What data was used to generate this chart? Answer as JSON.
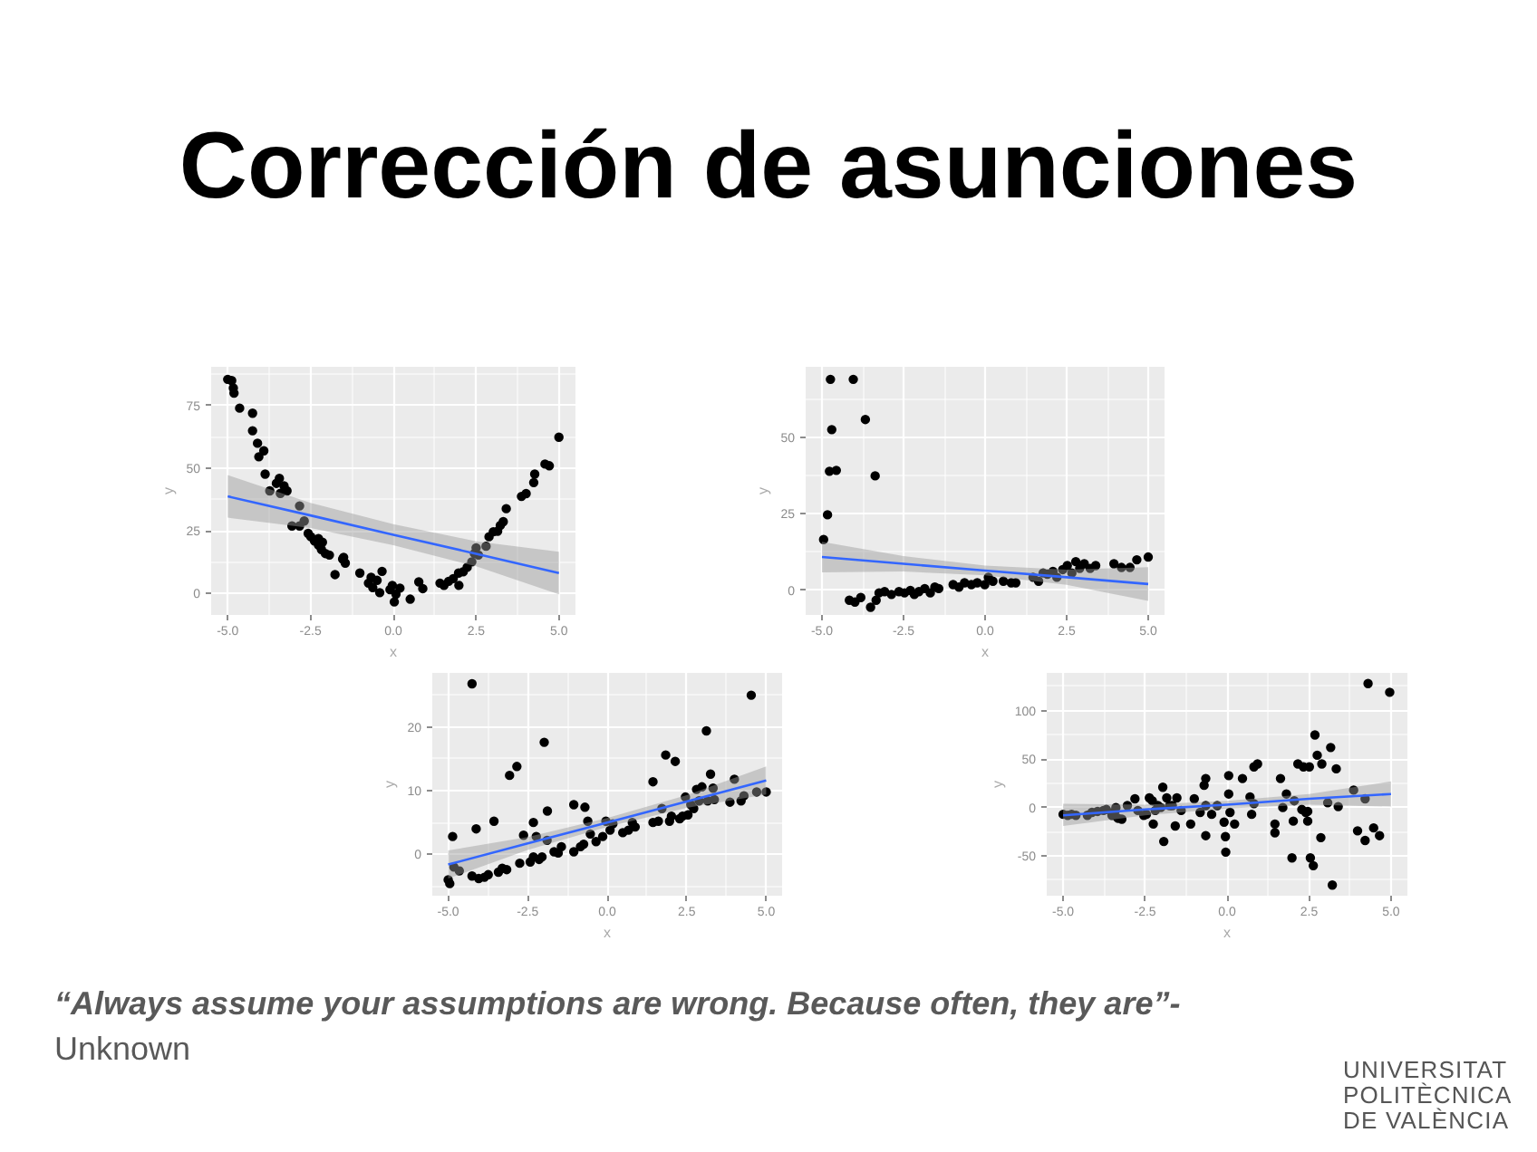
{
  "chart_data": [
    {
      "type": "scatter",
      "title": "Corrección de asunciones",
      "annotations": [
        "“Always assume your assumptions are wrong. Because often, they are”-",
        "Unknown",
        "UNIVERSITAT POLITÈCNICA DE VALÈNCIA"
      ],
      "xlabel": "x",
      "ylabel": "y",
      "xlim": [
        -5.5,
        5.5
      ],
      "ylim": [
        -8.5,
        90.5
      ],
      "xticks": [
        {
          "value": -5,
          "label": "-5.0"
        },
        {
          "value": -2.5,
          "label": "-2.5"
        },
        {
          "value": 0,
          "label": "0.0"
        },
        {
          "value": 2.5,
          "label": "2.5"
        },
        {
          "value": 5,
          "label": "5.0"
        }
      ],
      "yticks": [
        0,
        25,
        50,
        75
      ],
      "grid": true,
      "series": [
        {
          "type": "scatter",
          "marker": "circle",
          "color": "#000000",
          "x": [
            -5.0,
            -4.88,
            -4.83,
            -4.81,
            -4.64,
            -4.25,
            -4.25,
            -4.1,
            -4.06,
            -3.91,
            -3.87,
            -3.73,
            -3.53,
            -3.44,
            -3.41,
            -3.3,
            -3.21,
            -3.06,
            -2.83,
            -2.83,
            -2.69,
            -2.57,
            -2.49,
            -2.38,
            -2.26,
            -2.26,
            -2.17,
            -2.14,
            -2.05,
            -1.93,
            -1.76,
            -1.53,
            -1.5,
            -1.45,
            -1.01,
            -0.75,
            -0.67,
            -0.62,
            -0.49,
            -0.41,
            -0.34,
            -0.1,
            -0.03,
            0.03,
            0.08,
            0.2,
            0.51,
            0.77,
            0.89,
            1.41,
            1.53,
            1.67,
            1.81,
            1.97,
            1.98,
            2.11,
            2.23,
            2.37,
            2.45,
            2.5,
            2.57,
            2.8,
            2.89,
            3.02,
            3.15,
            3.23,
            3.32,
            3.41,
            3.87,
            4.01,
            4.24,
            4.27,
            4.58,
            4.71,
            5.0
          ],
          "values": [
            85.5,
            85,
            82,
            80,
            74,
            72,
            65,
            60,
            54.6,
            57,
            47.7,
            41,
            44,
            46,
            40,
            43,
            41,
            27,
            35,
            27,
            29,
            24,
            22.7,
            21,
            19.4,
            22,
            17.6,
            20.5,
            16,
            15.4,
            7.6,
            13.8,
            14.5,
            12.2,
            8.2,
            4.2,
            6.5,
            2.4,
            5.3,
            0.4,
            8.9,
            1.6,
            3.3,
            -3.3,
            -0.2,
            2.2,
            -2.2,
            4.7,
            2.0,
            4.2,
            3.3,
            4.9,
            6.0,
            8.2,
            3.3,
            8.7,
            10.5,
            12.7,
            16,
            18.3,
            15.4,
            18.9,
            22.7,
            24.7,
            24.9,
            27.2,
            28.7,
            33.9,
            38.8,
            39.9,
            44.3,
            47.7,
            51.7,
            51,
            62.4
          ]
        },
        {
          "type": "line",
          "color": "#3366ff",
          "x": [
            -5,
            -2.5,
            0,
            2.5,
            5
          ],
          "values": [
            38.8,
            31.2,
            23.5,
            15.9,
            8.2
          ],
          "lower": [
            30.3,
            26.2,
            19.3,
            10.9,
            -0.3
          ],
          "upper": [
            47.3,
            36.2,
            27.7,
            20.9,
            16.7
          ]
        }
      ]
    },
    {
      "type": "scatter",
      "xlabel": "x",
      "ylabel": "y",
      "xlim": [
        -5.5,
        5.5
      ],
      "ylim": [
        -8,
        73
      ],
      "xticks": [
        {
          "value": -5,
          "label": "-5.0"
        },
        {
          "value": -2.5,
          "label": "-2.5"
        },
        {
          "value": 0,
          "label": "0.0"
        },
        {
          "value": 2.5,
          "label": "2.5"
        },
        {
          "value": 5,
          "label": "5.0"
        }
      ],
      "yticks": [
        0,
        25,
        50
      ],
      "grid": true,
      "series": [
        {
          "type": "scatter",
          "marker": "circle",
          "color": "#000000",
          "x": [
            -4.74,
            -4.04,
            -4.7,
            -3.67,
            -4.77,
            -4.56,
            -3.37,
            -4.83,
            -4.95,
            -4.16,
            -3.99,
            -3.81,
            -3.51,
            -3.34,
            -3.25,
            -3.08,
            -2.87,
            -2.64,
            -2.47,
            -2.29,
            -2.17,
            -2.03,
            -1.85,
            -1.68,
            -1.54,
            -1.42,
            -0.98,
            -0.8,
            -0.63,
            -0.42,
            -0.24,
            -0.01,
            0.1,
            0.24,
            0.56,
            0.8,
            0.94,
            1.47,
            1.64,
            1.78,
            1.91,
            2.08,
            2.2,
            2.38,
            2.52,
            2.66,
            2.78,
            2.9,
            3.04,
            3.22,
            3.39,
            3.95,
            4.18,
            4.44,
            4.65,
            5.0
          ],
          "values": [
            68.9,
            68.9,
            52.5,
            55.8,
            38.9,
            39.2,
            37.4,
            24.7,
            16.6,
            -3.2,
            -3.8,
            -2.3,
            -5.5,
            -3.2,
            -0.8,
            -0.4,
            -1.3,
            -0.4,
            -0.8,
            0,
            -1.3,
            -0.4,
            0.6,
            -0.8,
            1.1,
            0.6,
            1.9,
            1.1,
            2.5,
            1.9,
            2.5,
            1.9,
            4.3,
            3.0,
            3.0,
            2.5,
            2.5,
            4.3,
            3.0,
            5.7,
            5.3,
            6.2,
            4.3,
            6.8,
            8.1,
            5.7,
            9.4,
            7.2,
            8.7,
            7.2,
            8.1,
            8.7,
            7.5,
            7.5,
            10.0,
            10.9
          ]
        },
        {
          "type": "line",
          "color": "#3366ff",
          "x": [
            -5,
            -2.5,
            0,
            2.5,
            5
          ],
          "values": [
            10.9,
            8.7,
            6.5,
            4.3,
            2.1
          ],
          "lower": [
            5.9,
            6.2,
            4.9,
            1.8,
            -3.4
          ],
          "upper": [
            15.9,
            11.2,
            8.1,
            6.8,
            7.6
          ]
        }
      ]
    },
    {
      "type": "scatter",
      "xlabel": "x",
      "ylabel": "y",
      "xlim": [
        -5.5,
        5.5
      ],
      "ylim": [
        -6.5,
        28.5
      ],
      "xticks": [
        {
          "value": -5,
          "label": "-5.0"
        },
        {
          "value": -2.5,
          "label": "-2.5"
        },
        {
          "value": 0,
          "label": "0.0"
        },
        {
          "value": 2.5,
          "label": "2.5"
        },
        {
          "value": 5,
          "label": "5.0"
        }
      ],
      "yticks": [
        0,
        10,
        20
      ],
      "grid": true,
      "series": [
        {
          "type": "scatter",
          "marker": "circle",
          "color": "#000000",
          "x": [
            -4.25,
            -5.0,
            -4.95,
            -4.86,
            -4.82,
            -4.65,
            -4.25,
            -4.12,
            -4.04,
            -3.86,
            -3.74,
            -3.56,
            -3.42,
            -3.3,
            -3.16,
            -3.07,
            -2.84,
            -2.75,
            -2.63,
            -2.42,
            -2.32,
            -2.32,
            -2.23,
            -2.14,
            -2.05,
            -1.98,
            -1.89,
            -1.88,
            -1.67,
            -1.54,
            -1.44,
            -1.05,
            -1.05,
            -0.84,
            -0.74,
            -0.7,
            -0.61,
            -0.53,
            -0.35,
            -0.14,
            -0.04,
            0.09,
            0.18,
            0.49,
            0.67,
            0.79,
            0.88,
            1.44,
            1.44,
            1.61,
            1.72,
            1.84,
            1.96,
            2.02,
            2.14,
            2.28,
            2.37,
            2.46,
            2.54,
            2.63,
            2.72,
            2.81,
            2.89,
            2.98,
            3.12,
            3.25,
            3.16,
            3.37,
            3.33,
            3.86,
            4.0,
            4.21,
            4.3,
            4.53,
            4.7,
            5.0
          ],
          "values": [
            26.8,
            -4.0,
            -4.6,
            2.8,
            -2.0,
            -2.6,
            -3.4,
            4.0,
            -3.8,
            -3.6,
            -3.2,
            5.2,
            -2.8,
            -2.2,
            -2.4,
            12.4,
            13.8,
            -1.4,
            3.0,
            -1.2,
            5.0,
            -0.4,
            2.8,
            -0.8,
            -0.4,
            17.6,
            2.2,
            6.8,
            0.4,
            0.2,
            1.2,
            7.8,
            0.4,
            1.2,
            1.6,
            7.4,
            5.2,
            3.2,
            2.0,
            2.8,
            5.2,
            3.8,
            4.8,
            3.4,
            3.8,
            5.0,
            4.3,
            11.4,
            5.0,
            5.2,
            7.2,
            15.6,
            5.2,
            6.0,
            14.6,
            5.6,
            6.0,
            9.0,
            6.2,
            7.8,
            7.2,
            10.2,
            8.4,
            10.6,
            19.4,
            12.6,
            8.4,
            8.6,
            10.4,
            8.2,
            11.8,
            8.4,
            9.2,
            25.0,
            9.8,
            9.8
          ]
        },
        {
          "type": "line",
          "color": "#3366ff",
          "x": [
            -5,
            -2.5,
            0,
            2.5,
            5
          ],
          "values": [
            -1.6,
            1.7,
            5.0,
            8.3,
            11.6
          ],
          "lower": [
            -3.8,
            0.7,
            4.3,
            7.3,
            9.4
          ],
          "upper": [
            0.6,
            2.7,
            5.7,
            9.3,
            13.8
          ]
        }
      ]
    },
    {
      "type": "scatter",
      "xlabel": "x",
      "ylabel": "y",
      "xlim": [
        -5.5,
        5.5
      ],
      "ylim": [
        -91,
        139
      ],
      "xticks": [
        {
          "value": -5,
          "label": "-5.0"
        },
        {
          "value": -2.5,
          "label": "-2.5"
        },
        {
          "value": 0,
          "label": "0.0"
        },
        {
          "value": 2.5,
          "label": "2.5"
        },
        {
          "value": 5,
          "label": "5.0"
        }
      ],
      "yticks": [
        {
          "value": -50,
          "label": "-50"
        },
        0,
        50,
        100
      ],
      "grid": true,
      "series": [
        {
          "type": "scatter",
          "marker": "circle",
          "color": "#000000",
          "x": [
            -5.0,
            -4.86,
            -4.74,
            -4.61,
            -4.26,
            -4.12,
            -3.95,
            -3.77,
            -3.68,
            -3.51,
            -3.42,
            -3.39,
            -3.33,
            -3.21,
            -3.04,
            -2.81,
            -2.72,
            -2.54,
            -2.46,
            -2.37,
            -2.28,
            -2.25,
            -2.19,
            -2.11,
            -2.02,
            -1.96,
            -1.93,
            -1.84,
            -1.75,
            -1.67,
            -1.58,
            -1.53,
            -1.4,
            -1.11,
            -1.0,
            -0.82,
            -0.7,
            -0.65,
            -0.65,
            -0.65,
            -0.47,
            -0.3,
            -0.09,
            -0.05,
            -0.04,
            0.05,
            0.05,
            0.09,
            0.23,
            0.47,
            0.7,
            0.75,
            0.82,
            0.93,
            0.82,
            1.46,
            1.46,
            1.63,
            1.7,
            1.81,
            1.98,
            2.02,
            2.05,
            2.16,
            2.28,
            2.33,
            2.4,
            2.46,
            2.46,
            2.51,
            2.54,
            2.68,
            2.63,
            2.75,
            2.86,
            2.89,
            3.07,
            3.16,
            3.21,
            3.33,
            3.39,
            3.86,
            3.98,
            4.21,
            4.21,
            4.3,
            4.47,
            4.65,
            4.96
          ],
          "values": [
            -7,
            -8,
            -7,
            -8,
            -8,
            -5,
            -4,
            -3,
            -2,
            -8,
            -4,
            0,
            -11,
            -12,
            2,
            9,
            -3,
            -8,
            -7,
            10,
            7,
            -17,
            -3,
            2,
            0,
            21,
            -35,
            10,
            2,
            2,
            -19,
            10,
            -3,
            -17,
            9,
            -5,
            23,
            30,
            -29,
            2,
            -7,
            2,
            -15,
            -30,
            -46,
            33,
            14,
            -5,
            -17,
            30,
            11,
            -7,
            42,
            45,
            4,
            -17,
            -26,
            30,
            0,
            14,
            -52,
            -14,
            7,
            45,
            -2,
            42,
            -5,
            -4,
            -14,
            42,
            -52,
            75,
            -60,
            54,
            -31,
            45,
            5,
            62,
            -80,
            40,
            1,
            18,
            -24,
            9,
            -34,
            128,
            -21,
            -29,
            119
          ]
        },
        {
          "type": "line",
          "color": "#3366ff",
          "x": [
            -5,
            -2.5,
            0,
            2.5,
            5
          ],
          "values": [
            -8,
            -2,
            3,
            9,
            14
          ],
          "lower": [
            -19,
            -8,
            -1,
            3,
            1
          ],
          "upper": [
            4,
            3,
            7,
            14,
            27
          ]
        }
      ]
    }
  ]
}
